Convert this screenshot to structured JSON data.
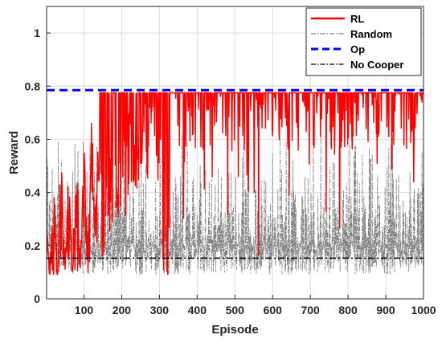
{
  "chart_data": {
    "type": "line",
    "xlabel": "Episode",
    "ylabel": "Reward",
    "xlim": [
      1,
      1000
    ],
    "ylim": [
      0,
      1.1
    ],
    "xticks": [
      100,
      200,
      300,
      400,
      500,
      600,
      700,
      800,
      900,
      1000
    ],
    "yticks": [
      0,
      0.2,
      0.4,
      0.6,
      0.8,
      1
    ],
    "ytick_labels": [
      "0",
      "0.2",
      "0.4",
      "0.6",
      "0.8",
      "1"
    ],
    "grid": true,
    "legend_position": "top-right",
    "series": [
      {
        "name": "RL",
        "color": "#ff0000",
        "style": "solid",
        "approx_path": [
          [
            1,
            0.25
          ],
          [
            10,
            0.1
          ],
          [
            20,
            0.48
          ],
          [
            30,
            0.1
          ],
          [
            40,
            0.52
          ],
          [
            50,
            0.12
          ],
          [
            60,
            0.5
          ],
          [
            70,
            0.1
          ],
          [
            80,
            0.55
          ],
          [
            90,
            0.12
          ],
          [
            100,
            0.6
          ],
          [
            110,
            0.2
          ],
          [
            120,
            0.68
          ],
          [
            130,
            0.3
          ],
          [
            140,
            0.68
          ],
          [
            150,
            0.45
          ],
          [
            160,
            0.7
          ],
          [
            170,
            0.55
          ],
          [
            180,
            0.72
          ],
          [
            190,
            0.6
          ],
          [
            200,
            0.74
          ],
          [
            210,
            0.65
          ],
          [
            220,
            0.76
          ],
          [
            240,
            0.7
          ],
          [
            260,
            0.78
          ],
          [
            280,
            0.72
          ],
          [
            300,
            0.78
          ],
          [
            320,
            0.1
          ],
          [
            330,
            0.78
          ],
          [
            360,
            0.73
          ],
          [
            400,
            0.78
          ],
          [
            450,
            0.75
          ],
          [
            500,
            0.78
          ],
          [
            560,
            0.78
          ],
          [
            563,
            0.16
          ],
          [
            570,
            0.78
          ],
          [
            600,
            0.78
          ],
          [
            650,
            0.78
          ],
          [
            700,
            0.78
          ],
          [
            760,
            0.78
          ],
          [
            765,
            0.45
          ],
          [
            770,
            0.78
          ],
          [
            800,
            0.78
          ],
          [
            850,
            0.78
          ],
          [
            900,
            0.78
          ],
          [
            950,
            0.78
          ],
          [
            1000,
            0.74
          ]
        ]
      },
      {
        "name": "Random",
        "color": "#808080",
        "style": "dashdot",
        "min": 0.09,
        "max": 0.7
      },
      {
        "name": "Op",
        "color": "#0000ff",
        "style": "dashed",
        "value": 0.785
      },
      {
        "name": "No Cooper",
        "color": "#000000",
        "style": "dashdot",
        "value": 0.153
      }
    ]
  }
}
